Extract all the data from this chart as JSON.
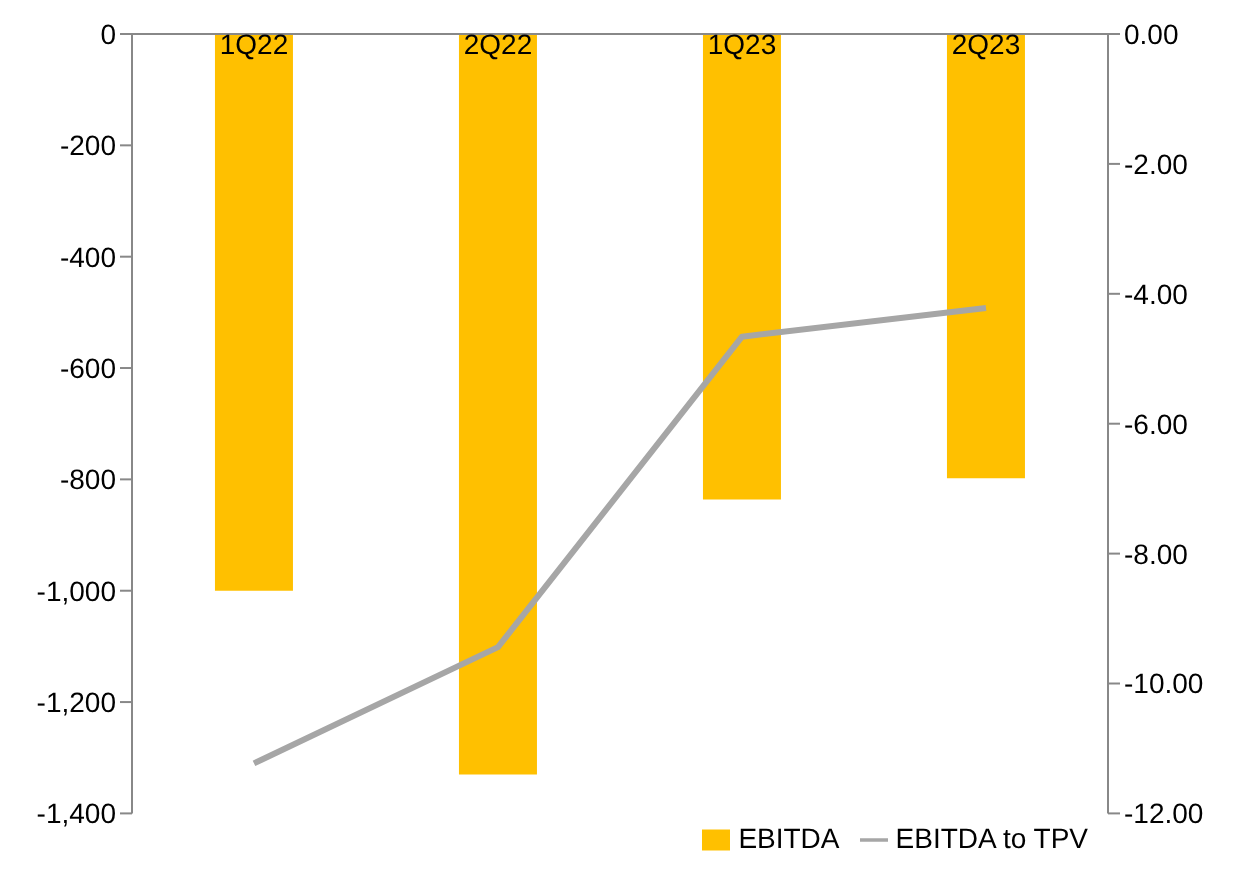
{
  "chart_data": {
    "type": "bar",
    "categories": [
      "1Q22",
      "2Q22",
      "1Q23",
      "2Q23"
    ],
    "series": [
      {
        "name": "EBITDA",
        "color": "#ffc000",
        "values": [
          -1000,
          -1330,
          -836,
          -798
        ]
      },
      {
        "name": "EBITDA to TPV",
        "type": "line",
        "axis": "y2",
        "color": "#a6a6a6",
        "values": [
          -11.23,
          -9.44,
          -4.66,
          -4.22
        ]
      }
    ],
    "ylim": [
      -1400,
      0
    ],
    "yticks": [
      {
        "value": 0,
        "label": "0"
      },
      {
        "value": -200,
        "label": "-200"
      },
      {
        "value": -400,
        "label": "-400"
      },
      {
        "value": -600,
        "label": "-600"
      },
      {
        "value": -800,
        "label": "-800"
      },
      {
        "value": -1000,
        "label": "-1,000"
      },
      {
        "value": -1200,
        "label": "-1,200"
      },
      {
        "value": -1400,
        "label": "-1,400"
      }
    ],
    "y2lim": [
      -12,
      0
    ],
    "y2ticks": [
      {
        "value": 0,
        "label": "0.00"
      },
      {
        "value": -2,
        "label": "-2.00"
      },
      {
        "value": -4,
        "label": "-4.00"
      },
      {
        "value": -6,
        "label": "-6.00"
      },
      {
        "value": -8,
        "label": "-8.00"
      },
      {
        "value": -10,
        "label": "-10.00"
      },
      {
        "value": -12,
        "label": "-12.00"
      }
    ],
    "grid": false,
    "legend": "bottom right",
    "marker": "none",
    "line_style": "solid"
  }
}
